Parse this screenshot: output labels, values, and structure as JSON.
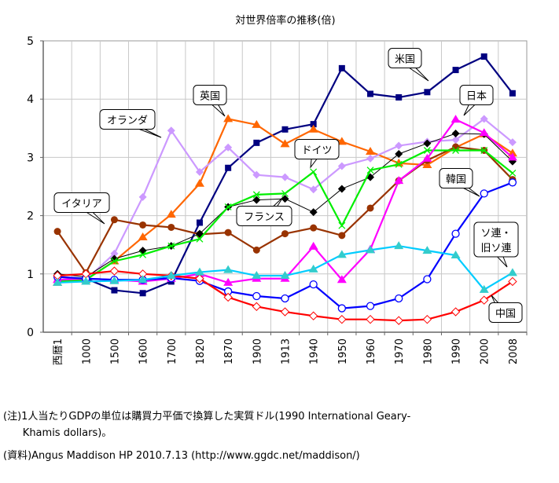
{
  "chart_data": {
    "type": "line",
    "title": "対世界倍率の推移(倍)",
    "xlabel": "",
    "ylabel": "",
    "ylim": [
      0,
      5
    ],
    "yticks": [
      "0",
      "1",
      "2",
      "3",
      "4",
      "5"
    ],
    "grid": true,
    "categories": [
      "西暦1",
      "1000",
      "1500",
      "1600",
      "1700",
      "1820",
      "1870",
      "1900",
      "1913",
      "1940",
      "1950",
      "1960",
      "1970",
      "1980",
      "1990",
      "2000",
      "2008"
    ],
    "series": [
      {
        "name": "米国",
        "color": "#000080",
        "marker": "square",
        "values": [
          0.9,
          0.92,
          0.72,
          0.67,
          0.87,
          1.88,
          2.82,
          3.25,
          3.48,
          3.57,
          4.53,
          4.09,
          4.03,
          4.12,
          4.5,
          4.73,
          4.1
        ]
      },
      {
        "name": "英国",
        "color": "#FF6600",
        "marker": "triangle",
        "values": [
          0.85,
          0.9,
          1.22,
          1.63,
          2.02,
          2.55,
          3.66,
          3.56,
          3.23,
          3.48,
          3.27,
          3.1,
          2.9,
          2.87,
          3.17,
          3.4,
          3.07
        ]
      },
      {
        "name": "オランダ",
        "color": "#CC99FF",
        "marker": "diamond",
        "values": [
          0.9,
          0.9,
          1.35,
          2.32,
          3.46,
          2.75,
          3.17,
          2.7,
          2.66,
          2.45,
          2.85,
          2.98,
          3.2,
          3.27,
          3.3,
          3.66,
          3.26
        ]
      },
      {
        "name": "イタリア",
        "color": "#993300",
        "marker": "circle",
        "values": [
          1.73,
          1.02,
          1.93,
          1.84,
          1.8,
          1.68,
          1.71,
          1.41,
          1.69,
          1.79,
          1.66,
          2.13,
          2.6,
          2.95,
          3.18,
          3.12,
          2.62
        ]
      },
      {
        "name": "フランス",
        "color": "#000000",
        "marker": "diamond",
        "values": [
          1.0,
          0.95,
          1.26,
          1.4,
          1.48,
          1.69,
          2.15,
          2.27,
          2.29,
          2.06,
          2.46,
          2.66,
          3.06,
          3.24,
          3.41,
          3.4,
          2.93
        ]
      },
      {
        "name": "ドイツ",
        "color": "#00EE00",
        "marker": "x",
        "values": [
          0.87,
          0.9,
          1.22,
          1.33,
          1.48,
          1.6,
          2.15,
          2.36,
          2.38,
          2.75,
          1.83,
          2.78,
          2.88,
          3.12,
          3.12,
          3.12,
          2.73
        ]
      },
      {
        "name": "日本",
        "color": "#FF00FF",
        "marker": "triangle",
        "values": [
          0.9,
          0.92,
          0.9,
          0.87,
          0.92,
          1.0,
          0.85,
          0.92,
          0.92,
          1.47,
          0.9,
          1.42,
          2.6,
          2.98,
          3.65,
          3.42,
          3.0
        ]
      },
      {
        "name": "韓国",
        "color": "#0000FF",
        "marker": "ocircle",
        "values": [
          0.95,
          0.92,
          0.9,
          0.9,
          0.93,
          0.88,
          0.7,
          0.62,
          0.58,
          0.82,
          0.41,
          0.45,
          0.58,
          0.91,
          1.69,
          2.38,
          2.57
        ]
      },
      {
        "name": "中国",
        "color": "#FF0000",
        "marker": "odiamond",
        "values": [
          0.97,
          1.0,
          1.05,
          1.0,
          0.97,
          0.92,
          0.6,
          0.44,
          0.35,
          0.28,
          0.22,
          0.22,
          0.2,
          0.22,
          0.35,
          0.55,
          0.87
        ]
      },
      {
        "name": "ソ連・旧ソ連",
        "color": "#00CCFF",
        "markerColor": "#33CCCC",
        "marker": "triangle",
        "values": [
          0.85,
          0.87,
          0.88,
          0.9,
          0.97,
          1.03,
          1.07,
          0.97,
          0.97,
          1.08,
          1.33,
          1.41,
          1.48,
          1.4,
          1.32,
          0.73,
          1.02
        ]
      }
    ],
    "annotations": [
      {
        "text": "米国",
        "series": 0
      },
      {
        "text": "英国",
        "series": 1
      },
      {
        "text": "オランダ",
        "series": 2
      },
      {
        "text": "イタリア",
        "series": 3
      },
      {
        "text": "フランス",
        "series": 4
      },
      {
        "text": "ドイツ",
        "series": 5
      },
      {
        "text": "日本",
        "series": 6
      },
      {
        "text": "韓国",
        "series": 7
      },
      {
        "text": "中国",
        "series": 8
      },
      {
        "text": "ソ連・",
        "text2": "旧ソ連",
        "series": 9
      }
    ]
  },
  "notes": {
    "line1": "(注)1人当たりGDPの単位は購買力平価で換算した実質ドル(1990 International Geary-",
    "line2": "      Khamis dollars)。",
    "line3": "(資料)Angus Maddison HP 2010.7.13 (http://www.ggdc.net/maddison/)"
  }
}
